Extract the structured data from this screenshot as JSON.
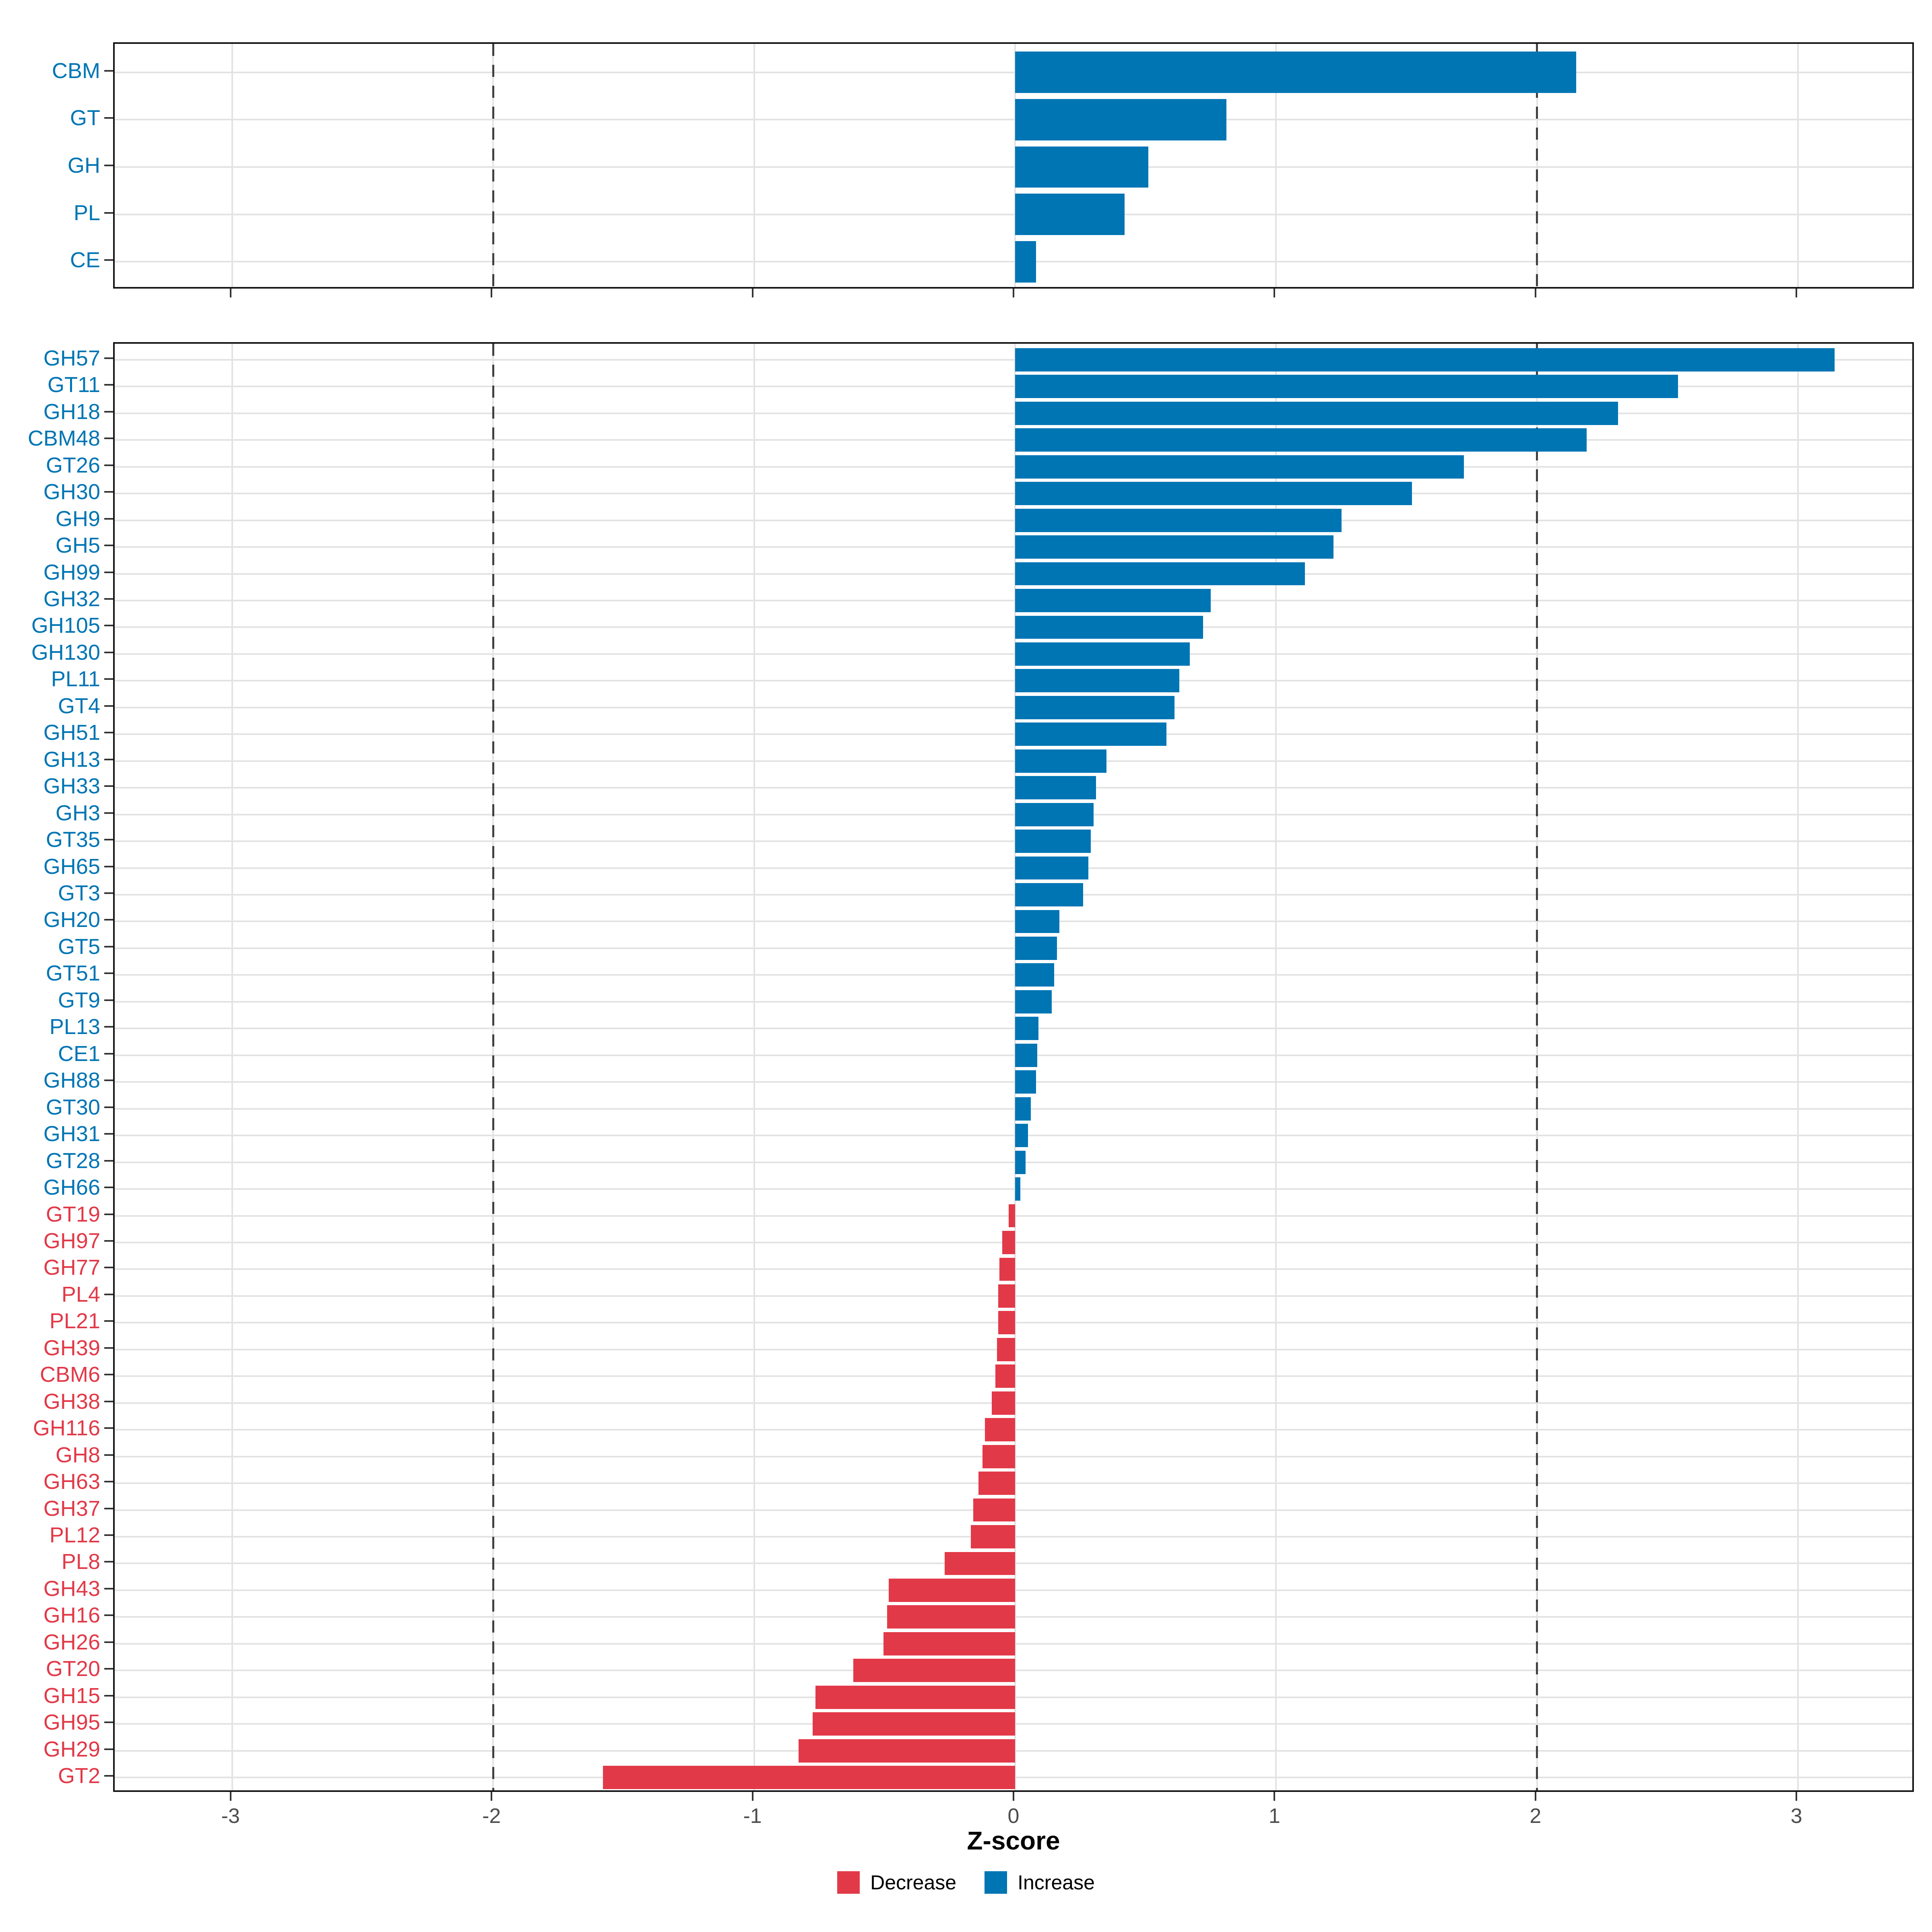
{
  "figure": {
    "xlabel": "Z-score",
    "background": "#ffffff"
  },
  "axis": {
    "tick_labels": [
      "-3",
      "-2",
      "-1",
      "0",
      "1",
      "2",
      "3"
    ],
    "tick_values": [
      -3,
      -2,
      -1,
      0,
      1,
      2,
      3
    ],
    "tick_label_color": "#4d4d4d"
  },
  "reference_lines": [
    -2,
    2
  ],
  "colors": {
    "increase": "#0075b4",
    "decrease": "#e23948",
    "grid": "#e3e3e3",
    "ref_line": "#404040",
    "axis": "#141414"
  },
  "legend": {
    "items": [
      {
        "label": "Decrease",
        "color": "#e23948"
      },
      {
        "label": "Increase",
        "color": "#0075b4"
      }
    ]
  },
  "chart_data": [
    {
      "type": "bar",
      "panel": "top",
      "orientation": "horizontal",
      "xlim": [
        -3.45,
        3.45
      ],
      "grid": true,
      "categories": [
        "CBM",
        "GT",
        "GH",
        "PL",
        "CE"
      ],
      "values": [
        2.15,
        0.81,
        0.51,
        0.42,
        0.08
      ]
    },
    {
      "type": "bar",
      "panel": "bottom",
      "orientation": "horizontal",
      "xlim": [
        -3.45,
        3.45
      ],
      "grid": true,
      "xlabel": "Z-score",
      "categories": [
        "GH57",
        "GT11",
        "GH18",
        "CBM48",
        "GT26",
        "GH30",
        "GH9",
        "GH5",
        "GH99",
        "GH32",
        "GH105",
        "GH130",
        "PL11",
        "GT4",
        "GH51",
        "GH13",
        "GH33",
        "GH3",
        "GT35",
        "GH65",
        "GT3",
        "GH20",
        "GT5",
        "GT51",
        "GT9",
        "PL13",
        "CE1",
        "GH88",
        "GT30",
        "GH31",
        "GT28",
        "GH66",
        "GT19",
        "GH97",
        "GH77",
        "PL4",
        "PL21",
        "GH39",
        "CBM6",
        "GH38",
        "GH116",
        "GH8",
        "GH63",
        "GH37",
        "PL12",
        "PL8",
        "GH43",
        "GH16",
        "GH26",
        "GT20",
        "GH15",
        "GH95",
        "GH29",
        "GT2"
      ],
      "values": [
        3.14,
        2.54,
        2.31,
        2.19,
        1.72,
        1.52,
        1.25,
        1.22,
        1.11,
        0.75,
        0.72,
        0.67,
        0.63,
        0.61,
        0.58,
        0.35,
        0.31,
        0.3,
        0.29,
        0.28,
        0.26,
        0.17,
        0.16,
        0.15,
        0.14,
        0.09,
        0.085,
        0.08,
        0.06,
        0.05,
        0.04,
        0.02,
        -0.025,
        -0.05,
        -0.06,
        -0.065,
        -0.065,
        -0.07,
        -0.075,
        -0.09,
        -0.115,
        -0.125,
        -0.14,
        -0.16,
        -0.17,
        -0.27,
        -0.485,
        -0.49,
        -0.505,
        -0.62,
        -0.765,
        -0.775,
        -0.83,
        -1.58
      ]
    }
  ]
}
